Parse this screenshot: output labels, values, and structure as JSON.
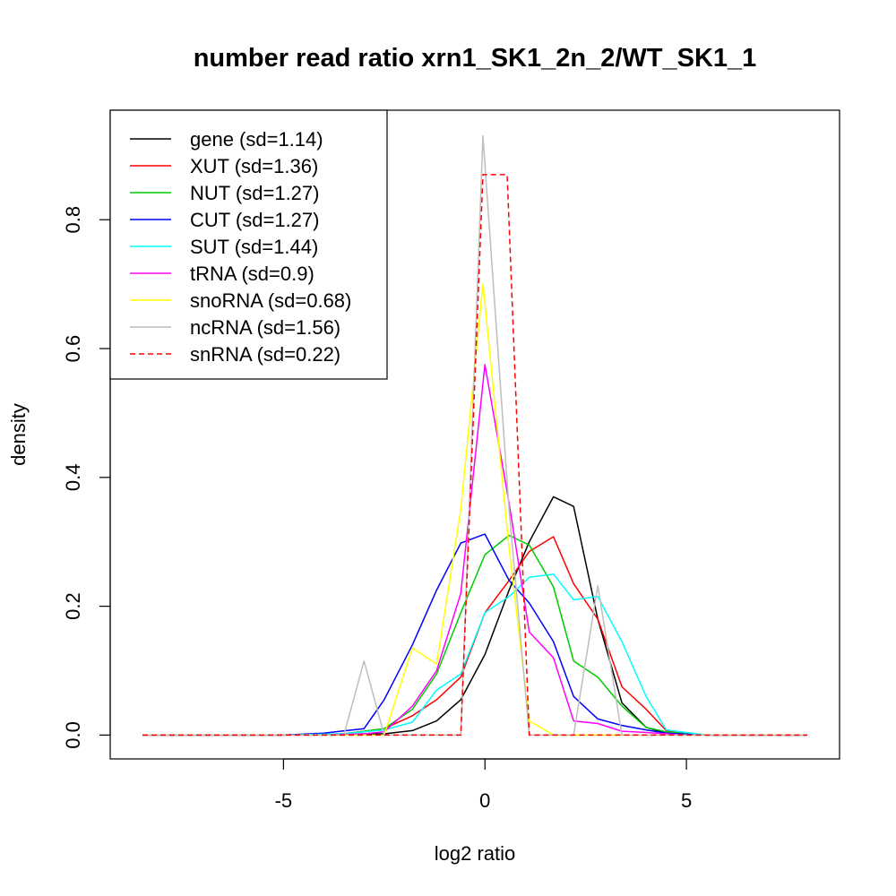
{
  "chart_data": {
    "type": "line",
    "title": "number read ratio xrn1_SK1_2n_2/WT_SK1_1",
    "xlabel": "log2 ratio",
    "ylabel": "density",
    "xlim": [
      -9.3,
      8.8
    ],
    "ylim": [
      -0.037,
      0.97
    ],
    "x_ticks": [
      -5,
      0,
      5
    ],
    "x_tick_labels": [
      "-5",
      "0",
      "5"
    ],
    "y_ticks": [
      0.0,
      0.2,
      0.4,
      0.6,
      0.8
    ],
    "y_tick_labels": [
      "0.0",
      "0.2",
      "0.4",
      "0.6",
      "0.8"
    ],
    "grid": false,
    "legend_position": "top-left",
    "series": [
      {
        "name": "gene (sd=1.14)",
        "color": "#000000",
        "dash": "solid",
        "x": [
          -8.5,
          -5.5,
          -4,
          -3,
          -2.5,
          -1.8,
          -1.2,
          -0.6,
          0,
          0.6,
          1.1,
          1.7,
          2.2,
          2.8,
          3.4,
          4.0,
          4.5,
          5.5,
          8.0
        ],
        "y": [
          0,
          0,
          0.001,
          0.002,
          0.002,
          0.007,
          0.022,
          0.055,
          0.125,
          0.225,
          0.3,
          0.37,
          0.355,
          0.18,
          0.05,
          0.012,
          0.003,
          0,
          0
        ]
      },
      {
        "name": "XUT (sd=1.36)",
        "color": "#ff0000",
        "dash": "solid",
        "x": [
          -8.5,
          -5,
          -3.5,
          -2.5,
          -1.8,
          -1.2,
          -0.6,
          0,
          0.6,
          1.1,
          1.7,
          2.2,
          2.8,
          3.4,
          4.0,
          4.5,
          5.5,
          8.0
        ],
        "y": [
          0,
          0,
          0.002,
          0.01,
          0.03,
          0.055,
          0.09,
          0.19,
          0.24,
          0.285,
          0.308,
          0.235,
          0.18,
          0.075,
          0.04,
          0.007,
          0,
          0
        ]
      },
      {
        "name": "NUT (sd=1.27)",
        "color": "#00cd00",
        "dash": "solid",
        "x": [
          -8.5,
          -5,
          -3.5,
          -2.5,
          -1.8,
          -1.2,
          -0.6,
          0,
          0.6,
          1.1,
          1.7,
          2.2,
          2.8,
          3.4,
          4.0,
          4.5,
          5.5,
          8.0
        ],
        "y": [
          0,
          0,
          0.002,
          0.01,
          0.04,
          0.095,
          0.19,
          0.28,
          0.31,
          0.295,
          0.23,
          0.115,
          0.09,
          0.045,
          0.012,
          0.005,
          0,
          0
        ]
      },
      {
        "name": "CUT (sd=1.27)",
        "color": "#0000ff",
        "dash": "solid",
        "x": [
          -8.5,
          -5,
          -4,
          -3,
          -2.5,
          -1.8,
          -1.2,
          -0.6,
          0,
          0.6,
          1.1,
          1.7,
          2.2,
          2.8,
          3.4,
          4.0,
          4.5,
          5.5,
          8.0
        ],
        "y": [
          0,
          0,
          0.003,
          0.01,
          0.055,
          0.14,
          0.225,
          0.298,
          0.312,
          0.24,
          0.205,
          0.145,
          0.06,
          0.025,
          0.015,
          0.008,
          0.003,
          0,
          0
        ]
      },
      {
        "name": "SUT (sd=1.44)",
        "color": "#00ffff",
        "dash": "solid",
        "x": [
          -8.5,
          -5,
          -3.5,
          -2.5,
          -1.8,
          -1.2,
          -0.6,
          0,
          0.6,
          1.1,
          1.7,
          2.2,
          2.8,
          3.4,
          4.0,
          4.5,
          5.5,
          8.0
        ],
        "y": [
          0,
          0,
          0.002,
          0.008,
          0.02,
          0.07,
          0.095,
          0.19,
          0.215,
          0.245,
          0.25,
          0.21,
          0.215,
          0.145,
          0.06,
          0.008,
          0,
          0
        ]
      },
      {
        "name": "tRNA (sd=0.9)",
        "color": "#ff00ff",
        "dash": "solid",
        "x": [
          -8.5,
          -4,
          -3,
          -2.5,
          -1.8,
          -1.2,
          -0.6,
          0,
          0.6,
          1.1,
          1.7,
          2.2,
          2.8,
          3.4,
          4.0,
          5.0,
          8.0
        ],
        "y": [
          0,
          0,
          0.002,
          0.005,
          0.045,
          0.1,
          0.22,
          0.575,
          0.36,
          0.16,
          0.12,
          0.022,
          0.018,
          0.006,
          0.004,
          0,
          0
        ]
      },
      {
        "name": "snoRNA (sd=0.68)",
        "color": "#ffff00",
        "dash": "solid",
        "x": [
          -8.5,
          -2.5,
          -1.8,
          -1.2,
          -0.6,
          -0.05,
          0.6,
          1.1,
          1.7,
          8.0
        ],
        "y": [
          0,
          0,
          0.135,
          0.11,
          0.35,
          0.7,
          0.29,
          0.022,
          0,
          0
        ]
      },
      {
        "name": "ncRNA (sd=1.56)",
        "color": "#bebebe",
        "dash": "solid",
        "x": [
          -8.5,
          -3.5,
          -3.0,
          -2.5,
          -0.6,
          -0.05,
          0.6,
          1.1,
          1.7,
          2.2,
          2.8,
          3.4,
          8.0
        ],
        "y": [
          0,
          0,
          0.115,
          0,
          0,
          0.93,
          0.35,
          0,
          0,
          0,
          0.232,
          0,
          0
        ]
      },
      {
        "name": "snRNA (sd=0.22)",
        "color": "#ff0000",
        "dash": "dashed",
        "x": [
          -8.5,
          -0.6,
          -0.05,
          0.55,
          1.1,
          8.0
        ],
        "y": [
          0,
          0,
          0.87,
          0.87,
          0,
          0
        ]
      }
    ]
  }
}
